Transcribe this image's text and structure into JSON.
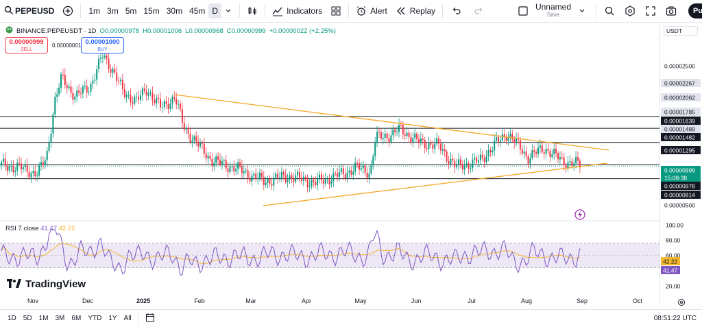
{
  "toolbar": {
    "symbol": "PEPEUSD",
    "timeframes": [
      "1m",
      "3m",
      "5m",
      "15m",
      "30m",
      "45m",
      "D"
    ],
    "active_timeframe": "D",
    "indicators_label": "Indicators",
    "alert_label": "Alert",
    "replay_label": "Replay",
    "layout_name": "Unnamed",
    "layout_status": "Save",
    "publish_label": "Pu"
  },
  "legend": {
    "pair": "BINANCE:PEPEUSDT · 1D",
    "open": "O0.00000978",
    "high": "H0.00001006",
    "low": "L0.00000968",
    "close": "C0.00000999",
    "change": "+0.00000022 (+2.25%)"
  },
  "trade": {
    "sell_price": "0.00000999",
    "sell_label": "SELL",
    "spread": "0.00000001",
    "buy_price": "0.00001000",
    "buy_label": "BUY"
  },
  "price_axis": {
    "currency": "USDT",
    "labels": [
      "0.00002500",
      "0.00002267",
      "0.00002062",
      "0.00001785",
      "0.00001639",
      "0.00001489",
      "0.00001482",
      "0.00001295",
      "0.00000999",
      "15:08:38",
      "0.00000978",
      "0.00000814",
      "0.00000500"
    ],
    "rsi_labels": [
      "100.00",
      "80.00",
      "60.00",
      "42.22",
      "41.47",
      "20.00"
    ]
  },
  "rsi": {
    "name": "RSI 7 close",
    "value": "41.47",
    "ma_value": "42.22"
  },
  "time_axis": {
    "labels": [
      "Nov",
      "Dec",
      "2025",
      "Feb",
      "Mar",
      "Apr",
      "May",
      "Jun",
      "Jul",
      "Aug",
      "Sep",
      "Oct"
    ]
  },
  "bottom": {
    "ranges": [
      "1D",
      "5D",
      "1M",
      "3M",
      "6M",
      "YTD",
      "1Y",
      "All"
    ],
    "clock": "08:51:22 UTC"
  },
  "brand": {
    "logo_text": "TradingView"
  },
  "colors": {
    "up": "#089981",
    "down": "#f23645",
    "trendline": "#f5a623",
    "rsi_line": "#7e57c2",
    "rsi_ma": "#f5b72b",
    "rsi_band": "#ede7f6"
  }
}
